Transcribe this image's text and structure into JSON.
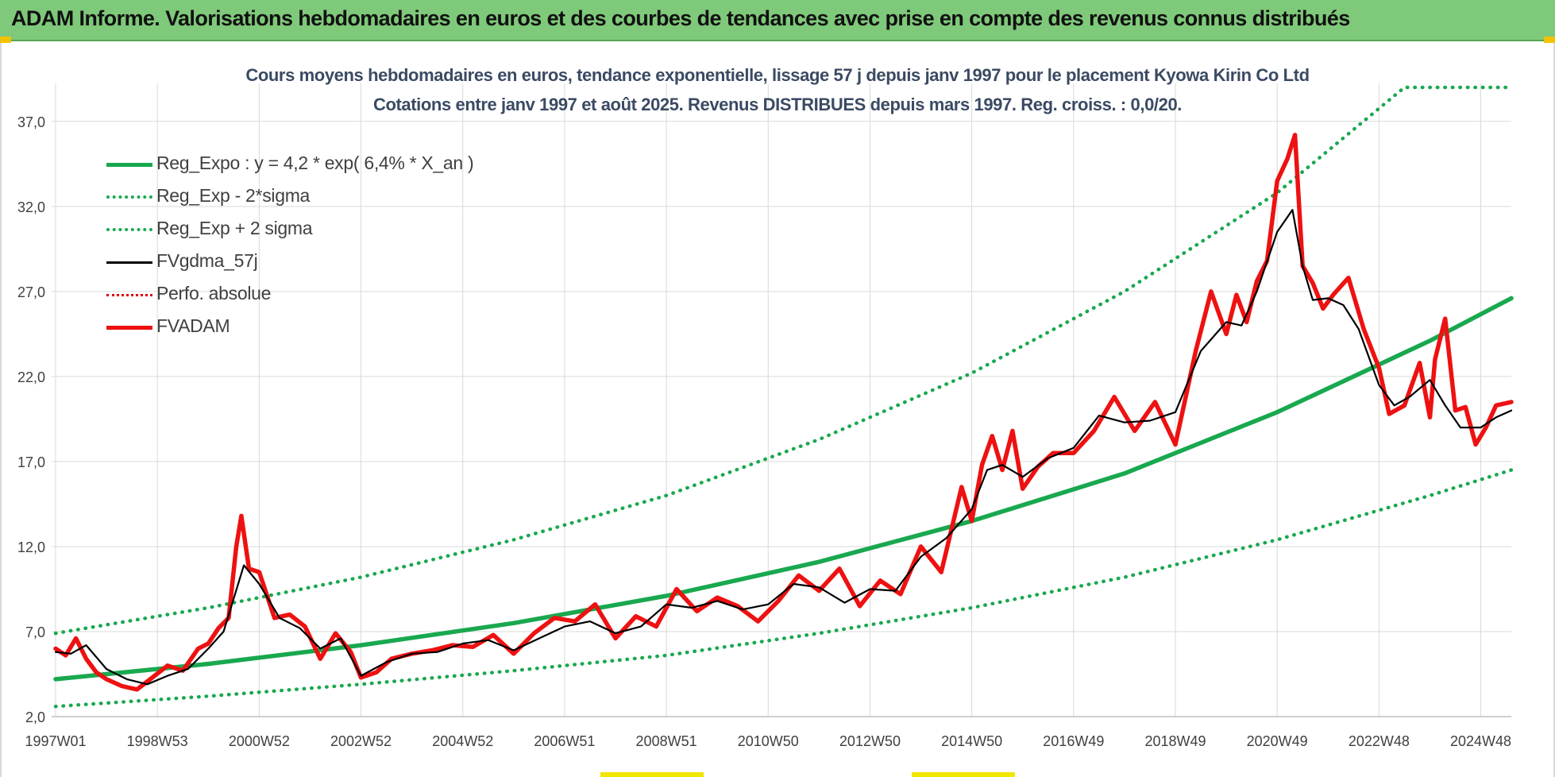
{
  "header": {
    "title": "ADAM Informe. Valorisations hebdomadaires en euros et des courbes de tendances avec prise en compte des revenus connus distribués"
  },
  "chart_data": {
    "type": "line",
    "title": "Cours moyens hebdomadaires en euros, tendance exponentielle, lissage 57 j depuis janv 1997 pour le placement Kyowa Kirin Co Ltd",
    "subtitle": "Cotations entre janv 1997 et août 2025.  Revenus DISTRIBUES depuis mars 1997. Reg. croiss. : 0,0/20.",
    "xlabel": "",
    "ylabel": "",
    "x_range": [
      1997.0,
      2025.6
    ],
    "ylim": [
      2.0,
      39.0
    ],
    "y_ticks": [
      "2,0",
      "7,0",
      "12,0",
      "17,0",
      "22,0",
      "27,0",
      "32,0",
      "37,0"
    ],
    "x_ticks": [
      {
        "label": "1997W01",
        "x": 1997.0
      },
      {
        "label": "1998W53",
        "x": 1999.0
      },
      {
        "label": "2000W52",
        "x": 2001.0
      },
      {
        "label": "2002W52",
        "x": 2003.0
      },
      {
        "label": "2004W52",
        "x": 2005.0
      },
      {
        "label": "2006W51",
        "x": 2007.0
      },
      {
        "label": "2008W51",
        "x": 2009.0
      },
      {
        "label": "2010W50",
        "x": 2011.0
      },
      {
        "label": "2012W50",
        "x": 2013.0
      },
      {
        "label": "2014W50",
        "x": 2015.0
      },
      {
        "label": "2016W49",
        "x": 2017.0
      },
      {
        "label": "2018W49",
        "x": 2019.0
      },
      {
        "label": "2020W49",
        "x": 2021.0
      },
      {
        "label": "2022W48",
        "x": 2023.0
      },
      {
        "label": "2024W48",
        "x": 2025.0
      }
    ],
    "grid": true,
    "legend_position": "top-left",
    "series": [
      {
        "name": "Reg_Expo : y = 4,2 * exp( 6,4% *  X_an )",
        "color": "#19a84f",
        "style": "solid-thick",
        "x": [
          1997.0,
          2000.0,
          2003.0,
          2006.0,
          2009.0,
          2012.0,
          2015.0,
          2018.0,
          2021.0,
          2024.0,
          2025.6
        ],
        "y": [
          4.2,
          5.1,
          6.2,
          7.5,
          9.1,
          11.1,
          13.5,
          16.3,
          19.9,
          24.1,
          26.6
        ]
      },
      {
        "name": "Reg_Exp - 2*sigma",
        "color": "#19a84f",
        "style": "dotted",
        "x": [
          1997.0,
          2000.0,
          2003.0,
          2006.0,
          2009.0,
          2012.0,
          2015.0,
          2018.0,
          2021.0,
          2024.0,
          2025.6
        ],
        "y": [
          2.6,
          3.2,
          3.9,
          4.7,
          5.6,
          6.9,
          8.4,
          10.2,
          12.4,
          15.0,
          16.5
        ]
      },
      {
        "name": "Reg_Exp + 2 sigma",
        "color": "#19a84f",
        "style": "dotted",
        "x": [
          1997.0,
          2000.0,
          2003.0,
          2006.0,
          2009.0,
          2012.0,
          2015.0,
          2018.0,
          2021.0,
          2023.5,
          2025.6
        ],
        "y": [
          6.9,
          8.4,
          10.2,
          12.4,
          15.0,
          18.3,
          22.2,
          27.0,
          32.8,
          39.0,
          39.0
        ]
      },
      {
        "name": "FVgdma_57j",
        "color": "#000000",
        "style": "solid",
        "x": [
          1997.0,
          1997.3,
          1997.6,
          1998.0,
          1998.4,
          1998.8,
          1999.2,
          1999.6,
          2000.0,
          2000.3,
          2000.7,
          2001.0,
          2001.4,
          2001.8,
          2002.2,
          2002.6,
          2003.0,
          2003.5,
          2004.0,
          2004.5,
          2005.0,
          2005.5,
          2006.0,
          2006.5,
          2007.0,
          2007.5,
          2008.0,
          2008.5,
          2009.0,
          2009.5,
          2010.0,
          2010.5,
          2011.0,
          2011.5,
          2012.0,
          2012.5,
          2013.0,
          2013.5,
          2014.0,
          2014.5,
          2015.0,
          2015.3,
          2015.6,
          2016.0,
          2016.5,
          2017.0,
          2017.5,
          2018.0,
          2018.5,
          2019.0,
          2019.5,
          2020.0,
          2020.3,
          2020.6,
          2021.0,
          2021.3,
          2021.5,
          2021.7,
          2022.0,
          2022.3,
          2022.6,
          2023.0,
          2023.3,
          2023.6,
          2024.0,
          2024.3,
          2024.6,
          2025.0,
          2025.3,
          2025.6
        ],
        "y": [
          5.8,
          5.7,
          6.2,
          4.8,
          4.2,
          3.9,
          4.4,
          4.8,
          6.0,
          7.0,
          10.9,
          9.8,
          7.8,
          7.2,
          6.0,
          6.6,
          4.4,
          5.2,
          5.7,
          5.8,
          6.3,
          6.5,
          5.9,
          6.6,
          7.3,
          7.6,
          6.9,
          7.3,
          8.6,
          8.4,
          8.8,
          8.3,
          8.6,
          9.8,
          9.6,
          8.7,
          9.5,
          9.4,
          11.4,
          12.5,
          14.2,
          16.5,
          16.8,
          16.1,
          17.2,
          17.8,
          19.7,
          19.3,
          19.4,
          19.9,
          23.5,
          25.2,
          25.0,
          27.0,
          30.5,
          31.8,
          28.5,
          26.5,
          26.6,
          26.2,
          24.8,
          21.5,
          20.3,
          20.8,
          21.8,
          20.3,
          19.0,
          19.0,
          19.6,
          20.0
        ]
      },
      {
        "name": "Perfo. absolue",
        "color": "#e00000",
        "style": "dotted",
        "x": [],
        "y": []
      },
      {
        "name": "FVADAM",
        "color": "#ee1111",
        "style": "solid-thick",
        "x": [
          1997.0,
          1997.2,
          1997.4,
          1997.6,
          1997.8,
          1998.0,
          1998.3,
          1998.6,
          1998.9,
          1999.2,
          1999.5,
          1999.8,
          2000.0,
          2000.2,
          2000.4,
          2000.55,
          2000.65,
          2000.8,
          2001.0,
          2001.3,
          2001.6,
          2001.9,
          2002.2,
          2002.5,
          2002.8,
          2003.0,
          2003.3,
          2003.6,
          2004.0,
          2004.4,
          2004.8,
          2005.2,
          2005.6,
          2006.0,
          2006.4,
          2006.8,
          2007.2,
          2007.6,
          2008.0,
          2008.4,
          2008.8,
          2009.2,
          2009.6,
          2010.0,
          2010.4,
          2010.8,
          2011.2,
          2011.6,
          2012.0,
          2012.4,
          2012.8,
          2013.2,
          2013.6,
          2014.0,
          2014.4,
          2014.8,
          2015.0,
          2015.2,
          2015.4,
          2015.6,
          2015.8,
          2016.0,
          2016.3,
          2016.6,
          2017.0,
          2017.4,
          2017.8,
          2018.2,
          2018.6,
          2019.0,
          2019.4,
          2019.7,
          2020.0,
          2020.2,
          2020.4,
          2020.6,
          2020.8,
          2021.0,
          2021.2,
          2021.35,
          2021.5,
          2021.7,
          2021.9,
          2022.1,
          2022.4,
          2022.7,
          2023.0,
          2023.2,
          2023.5,
          2023.8,
          2024.0,
          2024.1,
          2024.3,
          2024.5,
          2024.7,
          2024.9,
          2025.1,
          2025.3,
          2025.6
        ],
        "y": [
          6.0,
          5.6,
          6.6,
          5.4,
          4.6,
          4.2,
          3.8,
          3.6,
          4.3,
          5.0,
          4.7,
          6.0,
          6.3,
          7.2,
          7.8,
          12.0,
          13.8,
          10.7,
          10.5,
          7.8,
          8.0,
          7.3,
          5.4,
          6.9,
          5.8,
          4.3,
          4.6,
          5.4,
          5.7,
          5.9,
          6.2,
          6.1,
          6.8,
          5.7,
          6.9,
          7.8,
          7.6,
          8.6,
          6.6,
          7.9,
          7.3,
          9.5,
          8.2,
          9.0,
          8.5,
          7.6,
          8.8,
          10.3,
          9.4,
          10.7,
          8.5,
          10.0,
          9.2,
          12.0,
          10.5,
          15.5,
          13.5,
          16.8,
          18.5,
          16.5,
          18.8,
          15.4,
          16.7,
          17.5,
          17.5,
          18.8,
          20.8,
          18.8,
          20.5,
          18.0,
          23.5,
          27.0,
          24.5,
          26.8,
          25.2,
          27.6,
          28.8,
          33.5,
          34.8,
          36.2,
          28.5,
          27.5,
          26.0,
          26.8,
          27.8,
          24.8,
          22.5,
          19.8,
          20.3,
          22.8,
          19.6,
          23.0,
          25.4,
          20.0,
          20.2,
          18.0,
          19.0,
          20.3,
          20.5
        ]
      }
    ]
  }
}
